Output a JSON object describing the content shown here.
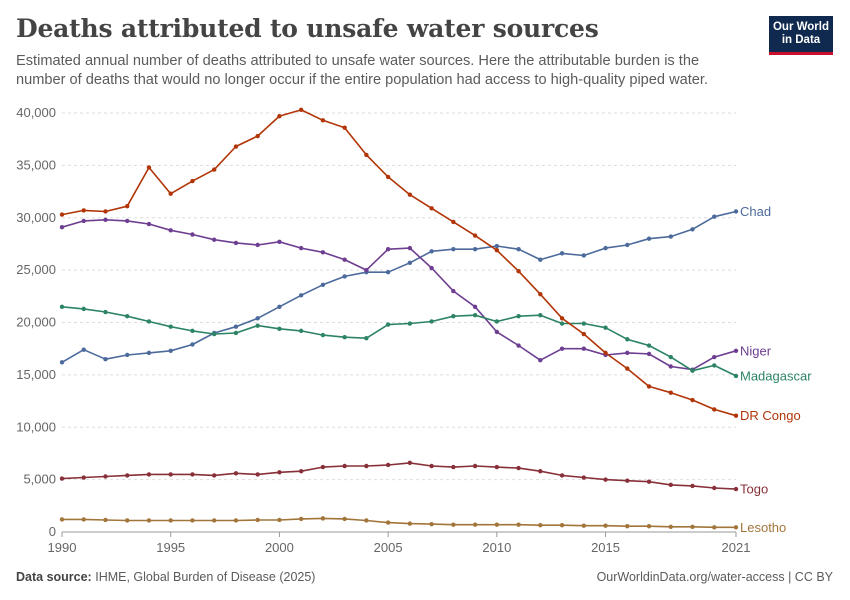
{
  "header": {
    "title": "Deaths attributed to unsafe water sources",
    "subtitle": "Estimated annual number of deaths attributed to unsafe water sources. Here the attributable burden is the number of deaths that would no longer occur if the entire population had access to high-quality piped water."
  },
  "logo": {
    "line1": "Our World",
    "line2": "in Data",
    "bg_color": "#0f2a4e",
    "accent_color": "#c8102e"
  },
  "footer": {
    "source_label": "Data source:",
    "source_text": "IHME, Global Burden of Disease (2025)",
    "url": "OurWorldinData.org/water-access | CC BY"
  },
  "chart_data": {
    "type": "line",
    "title": "Deaths attributed to unsafe water sources",
    "xlim": [
      1990,
      2021
    ],
    "ylim": [
      0,
      40000
    ],
    "yticks": [
      0,
      5000,
      10000,
      15000,
      20000,
      25000,
      30000,
      35000,
      40000
    ],
    "ytick_labels": [
      "0",
      "5,000",
      "10,000",
      "15,000",
      "20,000",
      "25,000",
      "30,000",
      "35,000",
      "40,000"
    ],
    "xticks": [
      1990,
      1995,
      2000,
      2005,
      2010,
      2015,
      2021
    ],
    "xtick_labels": [
      "1990",
      "1995",
      "2000",
      "2005",
      "2010",
      "2015",
      "2021"
    ],
    "grid": "horizontal dashed",
    "legend": "labels at line ends (right)",
    "x": [
      1990,
      1991,
      1992,
      1993,
      1994,
      1995,
      1996,
      1997,
      1998,
      1999,
      2000,
      2001,
      2002,
      2003,
      2004,
      2005,
      2006,
      2007,
      2008,
      2009,
      2010,
      2011,
      2012,
      2013,
      2014,
      2015,
      2016,
      2017,
      2018,
      2019,
      2020,
      2021
    ],
    "series": [
      {
        "name": "Chad",
        "color": "#4c6a9c",
        "values": [
          16200,
          17400,
          16500,
          16900,
          17100,
          17300,
          17900,
          19000,
          19600,
          20400,
          21500,
          22600,
          23600,
          24400,
          24800,
          24800,
          25700,
          26800,
          27000,
          27000,
          27300,
          27000,
          26000,
          26600,
          26400,
          27100,
          27400,
          28000,
          28200,
          28900,
          30100,
          30600
        ]
      },
      {
        "name": "Niger",
        "color": "#6d3e91",
        "values": [
          29100,
          29700,
          29800,
          29700,
          29400,
          28800,
          28400,
          27900,
          27600,
          27400,
          27700,
          27100,
          26700,
          26000,
          25000,
          27000,
          27100,
          25200,
          23000,
          21500,
          19100,
          17800,
          16400,
          17500,
          17500,
          16900,
          17100,
          17000,
          15800,
          15500,
          16700,
          17300
        ]
      },
      {
        "name": "Madagascar",
        "color": "#2c8465",
        "values": [
          21500,
          21300,
          21000,
          20600,
          20100,
          19600,
          19200,
          18900,
          19000,
          19700,
          19400,
          19200,
          18800,
          18600,
          18500,
          19800,
          19900,
          20100,
          20600,
          20700,
          20100,
          20600,
          20700,
          19900,
          19900,
          19500,
          18400,
          17800,
          16700,
          15400,
          15900,
          14900
        ]
      },
      {
        "name": "DR Congo",
        "color": "#b13507",
        "values": [
          30300,
          30700,
          30600,
          31100,
          34800,
          32300,
          33500,
          34600,
          36800,
          37800,
          39700,
          40300,
          39300,
          38600,
          36000,
          33900,
          32200,
          30900,
          29600,
          28300,
          26900,
          24900,
          22700,
          20400,
          18900,
          17100,
          15600,
          13900,
          13300,
          12600,
          11700,
          11100
        ]
      },
      {
        "name": "Togo",
        "color": "#883039",
        "values": [
          5100,
          5200,
          5300,
          5400,
          5500,
          5500,
          5500,
          5400,
          5600,
          5500,
          5700,
          5800,
          6200,
          6300,
          6300,
          6400,
          6600,
          6300,
          6200,
          6300,
          6200,
          6100,
          5800,
          5400,
          5200,
          5000,
          4900,
          4800,
          4500,
          4400,
          4200,
          4100
        ]
      },
      {
        "name": "Lesotho",
        "color": "#a2753b",
        "values": [
          1200,
          1200,
          1150,
          1100,
          1100,
          1100,
          1100,
          1100,
          1100,
          1150,
          1150,
          1250,
          1300,
          1250,
          1100,
          900,
          800,
          750,
          700,
          700,
          700,
          700,
          650,
          650,
          600,
          600,
          550,
          550,
          500,
          500,
          450,
          450
        ]
      }
    ]
  }
}
